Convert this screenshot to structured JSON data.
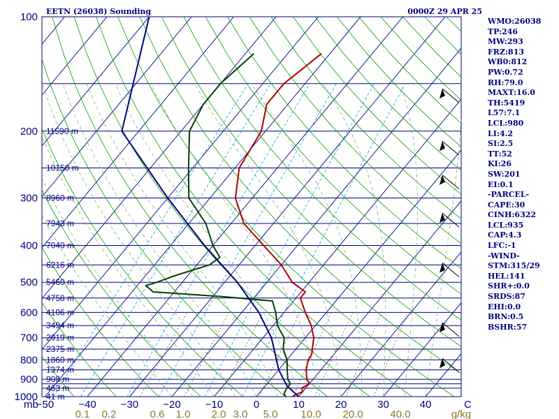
{
  "header": {
    "station": "EETN (26038) Sounding",
    "time": "0000Z 29 APR 25"
  },
  "chart_data": {
    "type": "line",
    "title": "EETN (26038) Sounding",
    "subtitle": "0000Z 29 APR 25",
    "pressure_axis_label": "mb",
    "pressure_ticks": [
      100,
      200,
      300,
      400,
      500,
      600,
      700,
      800,
      900,
      1000
    ],
    "pressure_lines": [
      150,
      200,
      250,
      300,
      350,
      400,
      450,
      500,
      550,
      600,
      650,
      700,
      750,
      800,
      850,
      900,
      925,
      950,
      1000
    ],
    "temperature_ticks": [
      -50,
      -40,
      -30,
      -20,
      -10,
      0,
      10,
      20,
      30,
      40,
      50
    ],
    "temperature_tick_labels": [
      "−50",
      "−40",
      "−30",
      "−20",
      "−10",
      "0",
      "10",
      "20",
      "30",
      "40",
      "C"
    ],
    "mixing_ratio_labels": [
      "0.1",
      "0.2",
      "0.6",
      "1.0",
      "2.0",
      "3.0",
      "5.0",
      "10.0",
      "20.0",
      "40.0",
      "g/kg"
    ],
    "height_labels": [
      {
        "p": 200,
        "text": "11590 m"
      },
      {
        "p": 250,
        "text": "10150 m"
      },
      {
        "p": 300,
        "text": "8960 m"
      },
      {
        "p": 350,
        "text": "7943 m"
      },
      {
        "p": 400,
        "text": "7040 m"
      },
      {
        "p": 450,
        "text": "6216 m"
      },
      {
        "p": 500,
        "text": "5460 m"
      },
      {
        "p": 550,
        "text": "4758 m"
      },
      {
        "p": 600,
        "text": "4106 m"
      },
      {
        "p": 650,
        "text": "3494 m"
      },
      {
        "p": 700,
        "text": "2919 m"
      },
      {
        "p": 750,
        "text": "2375 m"
      },
      {
        "p": 800,
        "text": "1860 m"
      },
      {
        "p": 850,
        "text": "1374 m"
      },
      {
        "p": 900,
        "text": "908 m"
      },
      {
        "p": 950,
        "text": "463 m"
      },
      {
        "p": 1000,
        "text": "41 m"
      }
    ],
    "series": [
      {
        "name": "temperature",
        "color": "#b00000",
        "points": [
          [
            1000,
            8.5
          ],
          [
            985,
            9
          ],
          [
            970,
            10
          ],
          [
            950,
            9
          ],
          [
            925,
            10
          ],
          [
            900,
            8.5
          ],
          [
            850,
            6.5
          ],
          [
            800,
            5
          ],
          [
            775,
            4.8
          ],
          [
            700,
            2
          ],
          [
            650,
            -1
          ],
          [
            600,
            -5
          ],
          [
            550,
            -9
          ],
          [
            530,
            -9
          ],
          [
            500,
            -14
          ],
          [
            450,
            -20
          ],
          [
            400,
            -28
          ],
          [
            350,
            -37
          ],
          [
            300,
            -44
          ],
          [
            250,
            -49
          ],
          [
            200,
            -51
          ],
          [
            170,
            -55
          ],
          [
            150,
            -55
          ],
          [
            125,
            -52
          ]
        ]
      },
      {
        "name": "dewpoint",
        "color": "#004000",
        "points": [
          [
            1000,
            7
          ],
          [
            985,
            6
          ],
          [
            950,
            5.5
          ],
          [
            925,
            5.5
          ],
          [
            900,
            4
          ],
          [
            850,
            2
          ],
          [
            800,
            0
          ],
          [
            750,
            -3
          ],
          [
            700,
            -5
          ],
          [
            650,
            -9
          ],
          [
            600,
            -12
          ],
          [
            560,
            -15
          ],
          [
            545,
            -28
          ],
          [
            530,
            -45
          ],
          [
            510,
            -48
          ],
          [
            500,
            -46
          ],
          [
            480,
            -43
          ],
          [
            450,
            -37
          ],
          [
            430,
            -36
          ],
          [
            400,
            -40
          ],
          [
            350,
            -46
          ],
          [
            300,
            -55
          ],
          [
            250,
            -61
          ],
          [
            200,
            -68
          ],
          [
            170,
            -70
          ],
          [
            150,
            -70
          ],
          [
            125,
            -68
          ]
        ]
      },
      {
        "name": "parcel",
        "color": "#000080",
        "points": [
          [
            1000,
            10
          ],
          [
            935,
            5
          ],
          [
            850,
            0
          ],
          [
            700,
            -8
          ],
          [
            600,
            -16
          ],
          [
            500,
            -27
          ],
          [
            400,
            -42
          ],
          [
            300,
            -60
          ],
          [
            200,
            -84
          ],
          [
            100,
            -100
          ]
        ]
      }
    ],
    "wind_barbs_at_pressure": [
      160,
      220,
      270,
      340,
      460,
      660,
      820
    ],
    "colors": {
      "axis": "#000080",
      "isotherm": "#000080",
      "dry_adiabat": "#00a000",
      "moist_adiabat": "#7fb080",
      "mixing_ratio": "#6a6030",
      "dewpoint_dashed": "#00a0d0",
      "temperature": "#b00000",
      "dewpoint": "#004000",
      "parcel": "#000080"
    }
  },
  "indices": [
    "WMO:26038",
    "TP:246",
    "MW:293",
    "FRZ:813",
    "WB0:812",
    "PW:0.72",
    "RH:79.0",
    "MAXT:16.0",
    "TH:5419",
    "L57:7.1",
    "LCL:980",
    "LI:4.2",
    "SI:2.5",
    "TT:52",
    "KI:26",
    "SW:201",
    "EI:0.1",
    "-PARCEL-",
    "CAPE:30",
    "CINH:6322",
    "LCL:935",
    "CAP:4.3",
    "LFC:-1",
    "-WIND-",
    "STM:315/29",
    "HEL:141",
    "SHR+:0.0",
    "SRDS:87",
    "EHI:0.0",
    "BRN:0.5",
    "BSHR:57"
  ]
}
